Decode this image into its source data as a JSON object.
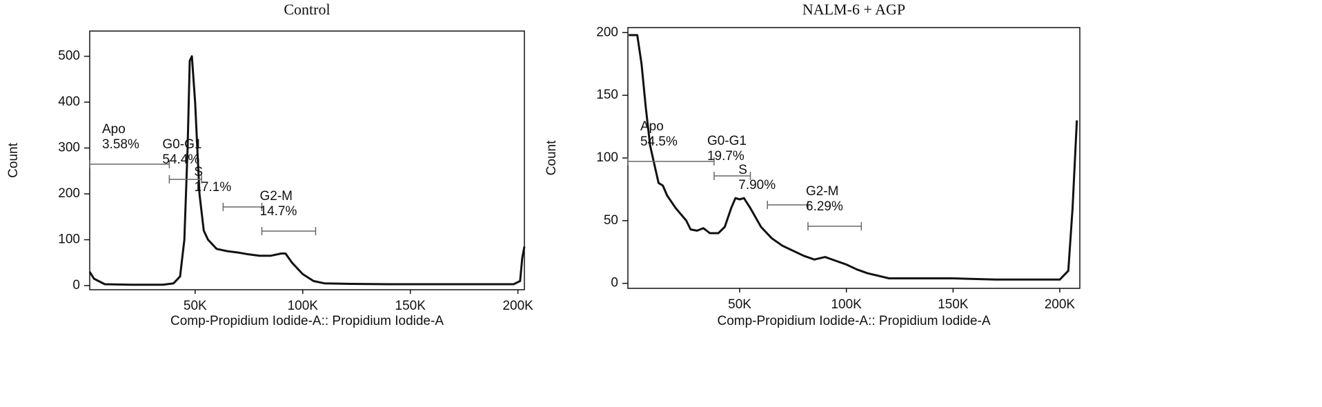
{
  "chart_data": [
    {
      "type": "line",
      "title": "Control",
      "x_label": "Comp-Propidium Iodide-A:: Propidium Iodide-A",
      "y_label": "Count",
      "xlim": [
        1000,
        203000
      ],
      "ylim": [
        -9,
        555
      ],
      "xticks": [
        {
          "value": 50000,
          "label": "50K"
        },
        {
          "value": 100000,
          "label": "100K"
        },
        {
          "value": 150000,
          "label": "150K"
        },
        {
          "value": 200000,
          "label": "200K"
        }
      ],
      "yticks": [
        0,
        100,
        200,
        300,
        400,
        500
      ],
      "series": [
        {
          "color": "#111111",
          "x": [
            1000,
            3000,
            8000,
            20000,
            35000,
            40000,
            43000,
            45000,
            46500,
            47500,
            48500,
            50000,
            52000,
            54000,
            56000,
            60000,
            65000,
            70000,
            75000,
            80000,
            85000,
            90000,
            92000,
            95000,
            100000,
            105000,
            110000,
            120000,
            140000,
            160000,
            180000,
            198000,
            201000,
            202000,
            203000
          ],
          "values": [
            30,
            15,
            3,
            2,
            2,
            5,
            20,
            100,
            300,
            490,
            500,
            400,
            200,
            120,
            100,
            80,
            75,
            72,
            68,
            65,
            65,
            70,
            70,
            50,
            25,
            10,
            5,
            4,
            3,
            3,
            3,
            3,
            10,
            60,
            85
          ]
        }
      ],
      "gates": [
        {
          "name": "Apo",
          "label": "3.58%",
          "range": [
            1000,
            38000
          ]
        },
        {
          "name": "G0-G1",
          "label": "54.4%",
          "range": [
            38000,
            53000
          ]
        },
        {
          "name": "S",
          "label": "17.1%",
          "range": [
            63000,
            81000
          ]
        },
        {
          "name": "G2-M",
          "label": "14.7%",
          "range": [
            81000,
            106000
          ]
        }
      ]
    },
    {
      "type": "line",
      "title": "NALM-6 + AGP",
      "x_label": "Comp-Propidium Iodide-A:: Propidium Iodide-A",
      "y_label": "Count",
      "xlim": [
        -2400,
        209400
      ],
      "ylim": [
        -4,
        204
      ],
      "xticks": [
        {
          "value": 50000,
          "label": "50K"
        },
        {
          "value": 100000,
          "label": "100K"
        },
        {
          "value": 150000,
          "label": "150K"
        },
        {
          "value": 200000,
          "label": "200K"
        }
      ],
      "yticks": [
        0,
        50,
        100,
        150,
        200
      ],
      "series": [
        {
          "color": "#111111",
          "x": [
            -2000,
            2000,
            4000,
            6000,
            8000,
            10000,
            12000,
            14000,
            16000,
            20000,
            25000,
            27000,
            30000,
            33000,
            36000,
            40000,
            43000,
            46000,
            48000,
            50000,
            52000,
            55000,
            60000,
            65000,
            70000,
            75000,
            80000,
            85000,
            90000,
            95000,
            100000,
            105000,
            110000,
            115000,
            120000,
            130000,
            150000,
            170000,
            190000,
            200000,
            204000,
            206000,
            208000
          ],
          "values": [
            198,
            198,
            175,
            140,
            110,
            95,
            80,
            78,
            70,
            60,
            50,
            43,
            42,
            44,
            40,
            40,
            45,
            60,
            68,
            67,
            68,
            60,
            45,
            36,
            30,
            26,
            22,
            19,
            21,
            18,
            15,
            11,
            8,
            6,
            4,
            4,
            4,
            3,
            3,
            3,
            10,
            60,
            130
          ]
        }
      ],
      "gates": [
        {
          "name": "Apo",
          "label": "54.5%",
          "range": [
            -2400,
            38000
          ]
        },
        {
          "name": "G0-G1",
          "label": "19.7%",
          "range": [
            38000,
            55000
          ]
        },
        {
          "name": "S",
          "label": "7.90%",
          "range": [
            63000,
            82000
          ]
        },
        {
          "name": "G2-M",
          "label": "6.29%",
          "range": [
            82000,
            107000
          ]
        }
      ]
    }
  ]
}
